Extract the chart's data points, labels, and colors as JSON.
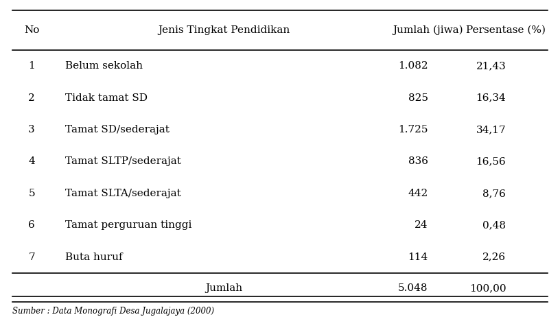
{
  "headers": [
    "No",
    "Jenis Tingkat Pendidikan",
    "Jumlah (jiwa)",
    "Persentase (%)"
  ],
  "rows": [
    [
      "1",
      "Belum sekolah",
      "1.082",
      "21,43"
    ],
    [
      "2",
      "Tidak tamat SD",
      "825",
      "16,34"
    ],
    [
      "3",
      "Tamat SD/sederajat",
      "1.725",
      "34,17"
    ],
    [
      "4",
      "Tamat SLTP/sederajat",
      "836",
      "16,56"
    ],
    [
      "5",
      "Tamat SLTA/sederajat",
      "442",
      "8,76"
    ],
    [
      "6",
      "Tamat perguruan tinggi",
      "24",
      "0,48"
    ],
    [
      "7",
      "Buta huruf",
      "114",
      "2,26"
    ]
  ],
  "footer": [
    "",
    "Jumlah",
    "5.048",
    "100,00"
  ],
  "source_text": "Sumber : Data Monografi Desa Jugalajaya (2000)",
  "background_color": "#ffffff",
  "font_size": 11,
  "header_font_size": 11
}
